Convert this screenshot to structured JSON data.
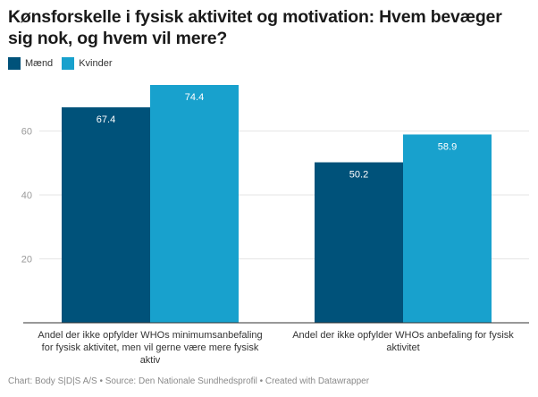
{
  "chart_data": {
    "type": "bar",
    "title": "Kønsforskelle i fysisk aktivitet og motivation: Hvem bevæger sig nok, og hvem vil mere?",
    "categories": [
      [
        "Andel der ikke opfylder WHOs minimumsanbefaling",
        "for fysisk aktivitet, men vil gerne være mere fysisk",
        "aktiv"
      ],
      [
        "Andel der ikke opfylder WHOs anbefaling for fysisk",
        "aktivitet"
      ]
    ],
    "series": [
      {
        "name": "Mænd",
        "color": "#00527a",
        "values": [
          67.4,
          50.2
        ],
        "labels": [
          "67.4",
          "50.2"
        ]
      },
      {
        "name": "Kvinder",
        "color": "#18a1cd",
        "values": [
          74.4,
          58.9
        ],
        "labels": [
          "74.4",
          "58.9"
        ]
      }
    ],
    "yticks": [
      20,
      40,
      60
    ],
    "ytick_labels": [
      "20",
      "40",
      "60"
    ],
    "ylim": [
      0,
      80
    ],
    "grid": true,
    "legend": "top-left",
    "xlabel": "",
    "ylabel": ""
  },
  "footer": "Chart: Body S|D|S A/S • Source: Den Nationale Sundhedsprofil • Created with Datawrapper"
}
